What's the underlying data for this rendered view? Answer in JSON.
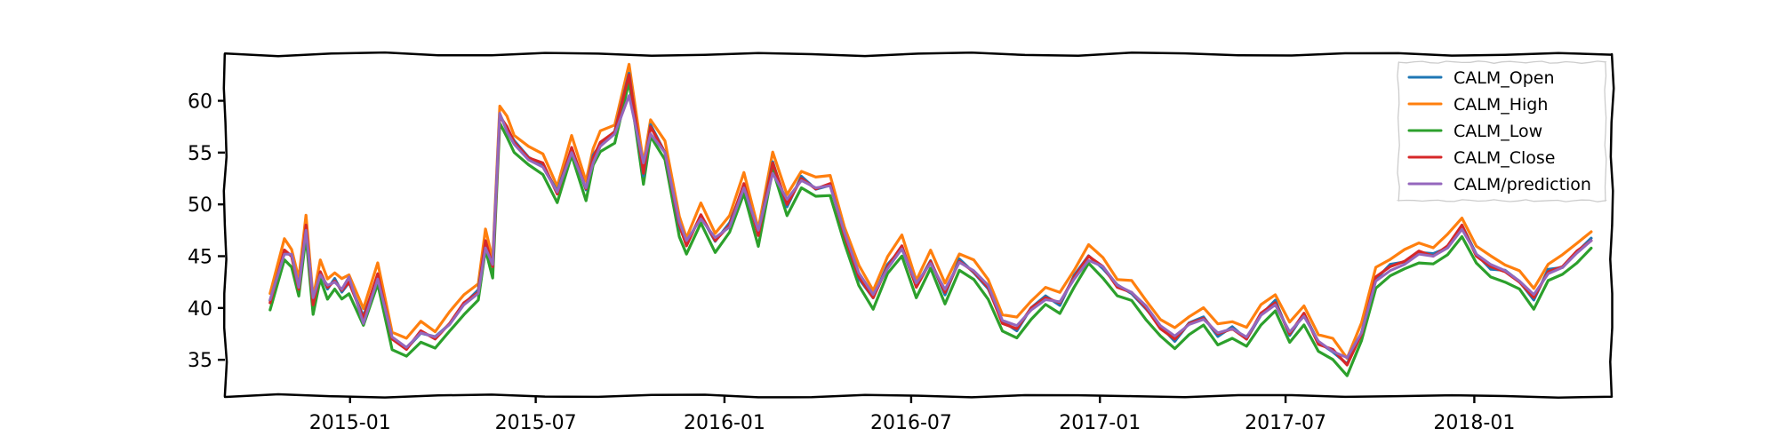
{
  "chart_data": {
    "type": "line",
    "title": "",
    "xlabel": "",
    "ylabel": "",
    "xlim": [
      "2014-09-01",
      "2018-05-15"
    ],
    "ylim": [
      31.5,
      64.5
    ],
    "x_ticks": [
      {
        "date": "2015-01-01",
        "label": "2015-01"
      },
      {
        "date": "2015-07-01",
        "label": "2015-07"
      },
      {
        "date": "2016-01-01",
        "label": "2016-01"
      },
      {
        "date": "2016-07-01",
        "label": "2016-07"
      },
      {
        "date": "2017-01-01",
        "label": "2017-01"
      },
      {
        "date": "2017-07-01",
        "label": "2017-07"
      },
      {
        "date": "2018-01-01",
        "label": "2018-01"
      }
    ],
    "y_ticks": [
      35,
      40,
      45,
      50,
      55,
      60
    ],
    "grid": false,
    "legend_position": "top-right",
    "style": "xkcd-sketch",
    "series_order": [
      "CALM_Open",
      "CALM_High",
      "CALM_Low",
      "CALM_Close",
      "CALM/prediction"
    ],
    "series_colors": {
      "CALM_Open": "#1f77b4",
      "CALM_High": "#ff7f0e",
      "CALM_Low": "#2ca02c",
      "CALM_Close": "#d62728",
      "CALM/prediction": "#9467bd"
    },
    "series_offsets": {
      "CALM_Open": 0.0,
      "CALM_High": 0.9,
      "CALM_Low": -0.9,
      "CALM_Close": 0.0,
      "CALM/prediction": 0.0
    },
    "x": [
      "2014-10-15",
      "2014-10-29",
      "2014-11-05",
      "2014-11-12",
      "2014-11-19",
      "2014-11-26",
      "2014-12-03",
      "2014-12-10",
      "2014-12-17",
      "2014-12-24",
      "2014-12-31",
      "2015-01-14",
      "2015-01-28",
      "2015-02-11",
      "2015-02-25",
      "2015-03-11",
      "2015-03-25",
      "2015-04-08",
      "2015-04-22",
      "2015-05-06",
      "2015-05-13",
      "2015-05-20",
      "2015-05-27",
      "2015-06-03",
      "2015-06-10",
      "2015-06-24",
      "2015-07-08",
      "2015-07-22",
      "2015-08-05",
      "2015-08-19",
      "2015-08-26",
      "2015-09-02",
      "2015-09-16",
      "2015-09-30",
      "2015-10-14",
      "2015-10-21",
      "2015-11-04",
      "2015-11-18",
      "2015-11-25",
      "2015-12-09",
      "2015-12-23",
      "2016-01-06",
      "2016-01-20",
      "2016-02-03",
      "2016-02-17",
      "2016-03-02",
      "2016-03-16",
      "2016-03-30",
      "2016-04-13",
      "2016-04-27",
      "2016-05-11",
      "2016-05-25",
      "2016-06-08",
      "2016-06-22",
      "2016-07-06",
      "2016-07-20",
      "2016-08-03",
      "2016-08-17",
      "2016-08-31",
      "2016-09-14",
      "2016-09-28",
      "2016-10-12",
      "2016-10-26",
      "2016-11-09",
      "2016-11-23",
      "2016-12-07",
      "2016-12-21",
      "2017-01-04",
      "2017-01-18",
      "2017-02-01",
      "2017-02-15",
      "2017-03-01",
      "2017-03-15",
      "2017-03-29",
      "2017-04-12",
      "2017-04-26",
      "2017-05-10",
      "2017-05-24",
      "2017-06-07",
      "2017-06-21",
      "2017-07-05",
      "2017-07-19",
      "2017-08-02",
      "2017-08-16",
      "2017-08-30",
      "2017-09-13",
      "2017-09-27",
      "2017-10-11",
      "2017-10-25",
      "2017-11-08",
      "2017-11-22",
      "2017-12-06",
      "2017-12-20",
      "2018-01-03",
      "2018-01-17",
      "2018-01-31",
      "2018-02-14",
      "2018-02-28",
      "2018-03-14",
      "2018-03-28",
      "2018-04-11",
      "2018-04-25"
    ],
    "series": [
      {
        "name": "CALM_Close",
        "values": [
          40.5,
          45.6,
          45.0,
          41.8,
          48.0,
          40.3,
          43.5,
          42.0,
          42.6,
          41.7,
          42.5,
          39.0,
          43.3,
          37.0,
          36.0,
          37.8,
          37.0,
          38.5,
          40.5,
          41.5,
          46.5,
          44.0,
          58.5,
          57.5,
          56.0,
          54.5,
          54.0,
          51.0,
          55.5,
          51.5,
          54.5,
          56.0,
          57.0,
          62.5,
          53.0,
          57.5,
          55.0,
          48.0,
          46.0,
          49.0,
          46.5,
          48.0,
          52.0,
          47.0,
          54.0,
          50.0,
          52.5,
          51.5,
          52.0,
          47.0,
          43.0,
          41.0,
          44.0,
          46.0,
          42.0,
          44.5,
          41.5,
          44.5,
          43.5,
          42.0,
          38.5,
          38.0,
          40.0,
          41.0,
          40.5,
          43.0,
          45.0,
          44.0,
          42.0,
          41.5,
          40.0,
          38.0,
          37.0,
          38.5,
          39.0,
          37.5,
          38.0,
          37.0,
          39.5,
          40.5,
          37.5,
          39.5,
          36.5,
          36.0,
          34.5,
          37.5,
          43.0,
          44.0,
          44.5,
          45.5,
          45.0,
          46.0,
          48.0,
          45.0,
          44.0,
          43.5,
          42.5,
          41.0,
          43.5,
          44.0,
          45.5,
          46.5
        ]
      },
      {
        "name": "CALM/prediction",
        "values": [
          40.8,
          45.2,
          45.2,
          42.0,
          47.5,
          41.0,
          43.2,
          42.2,
          42.5,
          41.8,
          43.0,
          38.5,
          42.8,
          37.2,
          36.2,
          37.6,
          37.2,
          38.4,
          40.3,
          41.4,
          45.8,
          44.2,
          58.8,
          57.0,
          55.8,
          54.3,
          53.6,
          51.2,
          55.0,
          51.6,
          54.0,
          55.6,
          56.8,
          60.5,
          54.0,
          56.8,
          55.0,
          48.3,
          46.5,
          48.6,
          46.8,
          47.8,
          51.6,
          47.5,
          53.0,
          50.5,
          52.3,
          51.6,
          51.8,
          47.3,
          43.4,
          41.3,
          43.8,
          45.7,
          42.4,
          44.3,
          41.8,
          44.4,
          43.6,
          42.2,
          38.8,
          38.3,
          39.8,
          40.8,
          40.6,
          42.8,
          44.6,
          44.0,
          42.2,
          41.5,
          40.2,
          38.3,
          37.3,
          38.4,
          38.9,
          37.6,
          38.0,
          37.2,
          39.3,
          40.3,
          37.7,
          39.2,
          36.8,
          35.8,
          35.2,
          37.6,
          42.6,
          43.6,
          44.2,
          45.2,
          45.0,
          45.8,
          47.6,
          45.2,
          44.2,
          43.6,
          42.6,
          41.3,
          43.3,
          43.9,
          45.3,
          46.5
        ]
      }
    ]
  },
  "legend": {
    "items": [
      {
        "label": "CALM_Open"
      },
      {
        "label": "CALM_High"
      },
      {
        "label": "CALM_Low"
      },
      {
        "label": "CALM_Close"
      },
      {
        "label": "CALM/prediction"
      }
    ]
  }
}
